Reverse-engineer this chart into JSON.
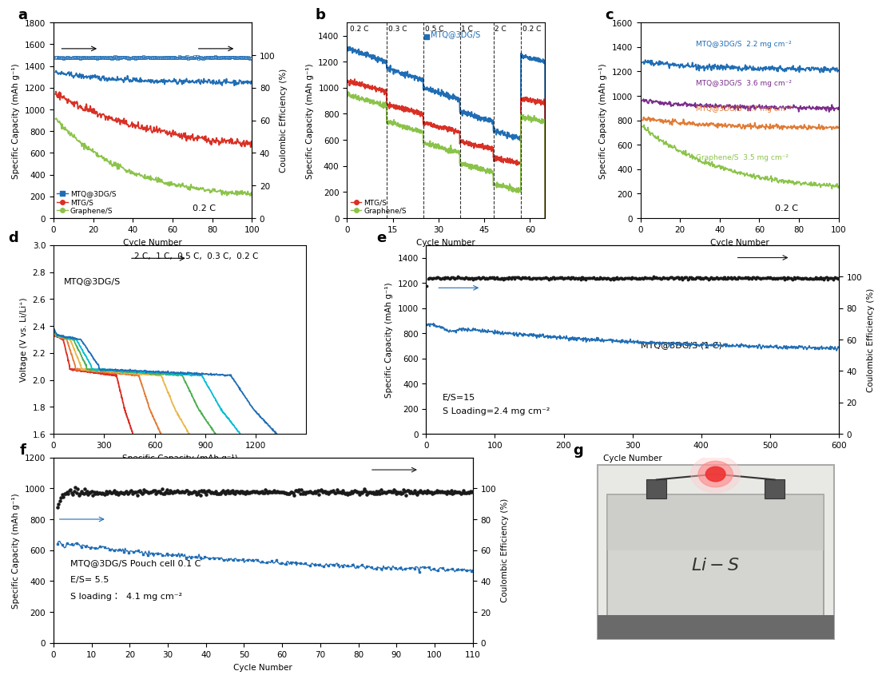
{
  "background_color": "#ffffff",
  "title_fontsize": 13,
  "tick_fontsize": 7.5,
  "axis_label_fontsize": 7.5,
  "panel_a": {
    "xlim": [
      0,
      100
    ],
    "ylim_left": [
      0,
      1800
    ],
    "ylim_right": [
      0,
      120
    ],
    "xticks": [
      0,
      20,
      40,
      60,
      80,
      100
    ],
    "yticks_right": [
      0,
      20,
      40,
      60,
      80,
      100
    ],
    "mtq_start": 1340,
    "mtq_end": 1250,
    "mtgs_start": 1150,
    "mtgs_end": 680,
    "grap_start": 920,
    "grap_end": 220,
    "ce_val": 98.5,
    "annotation": "0.2 C"
  },
  "panel_b": {
    "xlim": [
      0,
      65
    ],
    "ylim": [
      0,
      1500
    ],
    "xticks": [
      0,
      15,
      30,
      45,
      60
    ],
    "dashed_x": [
      13,
      25,
      37,
      48,
      57
    ],
    "base_mtq": [
      1300,
      1150,
      1000,
      820,
      670,
      1250
    ],
    "base_mtgs": [
      1050,
      870,
      730,
      590,
      460,
      920
    ],
    "base_grap": [
      950,
      740,
      580,
      420,
      260,
      780
    ],
    "drop_mtq": [
      100,
      90,
      90,
      80,
      60,
      50
    ],
    "drop_mtgs": [
      80,
      70,
      70,
      60,
      40,
      40
    ],
    "drop_grap": [
      90,
      80,
      80,
      70,
      50,
      40
    ],
    "crate_x": [
      1,
      13.5,
      25.5,
      37.5,
      48.5,
      57.5
    ],
    "crate_labels": [
      "0.2 C",
      "0.3 C",
      "0.5 C",
      "1 C",
      "2 C",
      "0.2 C"
    ]
  },
  "panel_c": {
    "xlim": [
      0,
      100
    ],
    "ylim": [
      0,
      1600
    ],
    "xticks": [
      0,
      20,
      40,
      60,
      80,
      100
    ],
    "blue_start": 1280,
    "blue_end": 1220,
    "purple_start": 960,
    "purple_end": 900,
    "orange_start": 820,
    "orange_end": 740,
    "green_start": 750,
    "green_end": 260,
    "annotation": "0.2 C",
    "colors": {
      "blue": "#1f6db5",
      "purple": "#7b2d8b",
      "orange": "#e07b35",
      "green": "#8bc34a"
    }
  },
  "panel_d": {
    "xlim": [
      0,
      1500
    ],
    "ylim": [
      1.6,
      3.0
    ],
    "xticks": [
      0,
      300,
      600,
      900,
      1200
    ],
    "yticks": [
      1.6,
      1.8,
      2.0,
      2.2,
      2.4,
      2.6,
      2.8,
      3.0
    ],
    "cap_max": [
      480,
      650,
      820,
      980,
      1130,
      1350
    ],
    "colors": [
      "#d93025",
      "#e07b35",
      "#e8b84b",
      "#4caf50",
      "#00bcd4",
      "#1f6db5"
    ]
  },
  "panel_e": {
    "xlim": [
      0,
      600
    ],
    "ylim_left": [
      0,
      1500
    ],
    "ylim_right": [
      0,
      120
    ],
    "xticks": [
      0,
      100,
      200,
      300,
      400,
      500,
      600
    ],
    "yticks_right": [
      0,
      20,
      40,
      60,
      80,
      100
    ],
    "ce_val": 99.0,
    "ce_display": 1450,
    "cap_start": 870,
    "cap_end": 680
  },
  "panel_f": {
    "xlim": [
      0,
      110
    ],
    "ylim_left": [
      0,
      1200
    ],
    "ylim_right": [
      0,
      120
    ],
    "xticks": [
      0,
      10,
      20,
      30,
      40,
      50,
      60,
      70,
      80,
      90,
      100,
      110
    ],
    "ce_val": 97.5,
    "ce_display": 1100,
    "cap_start": 650,
    "cap_end": 470
  },
  "colors": {
    "blue": "#1f6db5",
    "red": "#d93025",
    "green": "#8bc34a",
    "black": "#1a1a1a"
  }
}
